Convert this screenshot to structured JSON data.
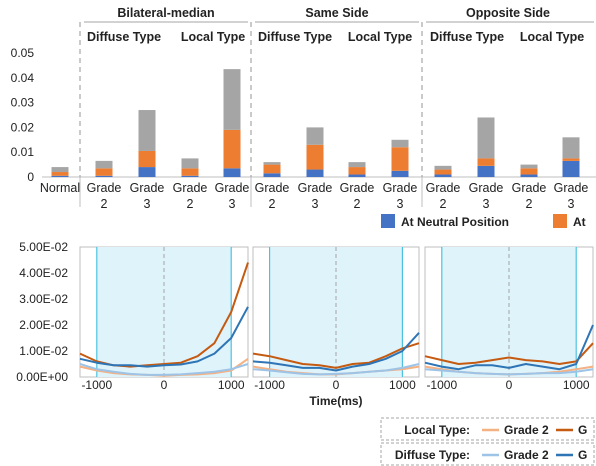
{
  "colors": {
    "neutral": "#4472c4",
    "orange": "#ed7d31",
    "gray": "#a5a5a5",
    "local_g2": "#f4b183",
    "local_g3": "#c55a11",
    "diffuse_g2": "#9dc3e6",
    "diffuse_g3": "#2e75b6",
    "shade": "#dff3fb",
    "shade_edge": "#4bc3e0"
  },
  "chart_data": [
    {
      "type": "bar",
      "stacked": true,
      "group_headers": [
        "Bilateral-median",
        "Same Side",
        "Opposite Side"
      ],
      "subgroup_headers": [
        "Diffuse Type",
        "Local Type",
        "Diffuse Type",
        "Local Type",
        "Diffuse Type",
        "Local Type"
      ],
      "categories": [
        [
          "Normal"
        ],
        [
          "Grade",
          "2"
        ],
        [
          "Grade",
          "3"
        ],
        [
          "Grade",
          "2"
        ],
        [
          "Grade",
          "3"
        ],
        [
          "Grade",
          "2"
        ],
        [
          "Grade",
          "3"
        ],
        [
          "Grade",
          "2"
        ],
        [
          "Grade",
          "3"
        ],
        [
          "Grade",
          "2"
        ],
        [
          "Grade",
          "3"
        ],
        [
          "Grade",
          "2"
        ],
        [
          "Grade",
          "3"
        ]
      ],
      "series": [
        {
          "name": "At Neutral Position",
          "color_key": "neutral",
          "values": [
            0.0005,
            0.0005,
            0.004,
            0.0005,
            0.0035,
            0.0015,
            0.003,
            0.001,
            0.0025,
            0.001,
            0.0045,
            0.001,
            0.0065
          ]
        },
        {
          "name": "At",
          "color_key": "orange",
          "values": [
            0.0015,
            0.003,
            0.0065,
            0.003,
            0.0155,
            0.0035,
            0.01,
            0.003,
            0.0095,
            0.002,
            0.003,
            0.0025,
            0.001
          ]
        },
        {
          "name": "",
          "color_key": "gray",
          "values": [
            0.002,
            0.003,
            0.0165,
            0.004,
            0.0245,
            0.001,
            0.007,
            0.002,
            0.003,
            0.0015,
            0.0165,
            0.0015,
            0.0085
          ]
        }
      ],
      "ylim": [
        0,
        0.05
      ],
      "yticks": [
        "0",
        "0.01",
        "0.02",
        "0.03",
        "0.04",
        "0.05"
      ],
      "ytick_values": [
        0,
        0.01,
        0.02,
        0.03,
        0.04,
        0.05
      ],
      "legend": [
        "At Neutral Position",
        "At"
      ]
    },
    {
      "type": "line",
      "xlabel": "Time(ms)",
      "xlim": [
        -1250,
        1250
      ],
      "xticks": [
        "-1000",
        "0",
        "1000"
      ],
      "xtick_values": [
        -1000,
        0,
        1000
      ],
      "ylim": [
        0,
        0.05
      ],
      "yticks": [
        "0.00E+00",
        "1.00E-02",
        "2.00E-02",
        "3.00E-02",
        "4.00E-02",
        "5.00E-02"
      ],
      "ytick_values": [
        0,
        0.01,
        0.02,
        0.03,
        0.04,
        0.05
      ],
      "shaded_range": [
        -1000,
        1000
      ],
      "x": [
        -1250,
        -1000,
        -750,
        -500,
        -250,
        0,
        250,
        500,
        750,
        1000,
        1250
      ],
      "panels": [
        {
          "series": [
            {
              "name": "Local Type: Grade 2",
              "color_key": "local_g2",
              "values": [
                0.004,
                0.0025,
                0.0015,
                0.001,
                0.0008,
                0.0005,
                0.0008,
                0.001,
                0.0015,
                0.0025,
                0.007
              ]
            },
            {
              "name": "Local Type: Grade 3",
              "color_key": "local_g3",
              "values": [
                0.009,
                0.006,
                0.0045,
                0.004,
                0.0045,
                0.005,
                0.0055,
                0.008,
                0.013,
                0.025,
                0.044
              ]
            },
            {
              "name": "Diffuse Type: Grade 2",
              "color_key": "diffuse_g2",
              "values": [
                0.005,
                0.003,
                0.002,
                0.0012,
                0.0008,
                0.0008,
                0.001,
                0.0015,
                0.002,
                0.003,
                0.005
              ]
            },
            {
              "name": "Diffuse Type: Grade 3",
              "color_key": "diffuse_g3",
              "values": [
                0.007,
                0.0055,
                0.0045,
                0.0045,
                0.004,
                0.0045,
                0.0048,
                0.006,
                0.009,
                0.015,
                0.027
              ]
            }
          ]
        },
        {
          "series": [
            {
              "name": "Local Type: Grade 2",
              "color_key": "local_g2",
              "values": [
                0.004,
                0.003,
                0.002,
                0.0015,
                0.001,
                0.001,
                0.0015,
                0.002,
                0.0025,
                0.003,
                0.004
              ]
            },
            {
              "name": "Local Type: Grade 3",
              "color_key": "local_g3",
              "values": [
                0.009,
                0.008,
                0.0065,
                0.005,
                0.0045,
                0.0035,
                0.005,
                0.0055,
                0.008,
                0.011,
                0.013
              ]
            },
            {
              "name": "Diffuse Type: Grade 2",
              "color_key": "diffuse_g2",
              "values": [
                0.003,
                0.0025,
                0.0018,
                0.0012,
                0.001,
                0.0012,
                0.0015,
                0.002,
                0.0025,
                0.0035,
                0.005
              ]
            },
            {
              "name": "Diffuse Type: Grade 3",
              "color_key": "diffuse_g3",
              "values": [
                0.006,
                0.0055,
                0.0045,
                0.0035,
                0.0035,
                0.0025,
                0.004,
                0.005,
                0.007,
                0.01,
                0.017
              ]
            }
          ]
        },
        {
          "series": [
            {
              "name": "Local Type: Grade 2",
              "color_key": "local_g2",
              "values": [
                0.004,
                0.003,
                0.002,
                0.0015,
                0.0012,
                0.001,
                0.0012,
                0.0015,
                0.002,
                0.003,
                0.004
              ]
            },
            {
              "name": "Local Type: Grade 3",
              "color_key": "local_g3",
              "values": [
                0.008,
                0.0065,
                0.005,
                0.0055,
                0.0065,
                0.0075,
                0.0065,
                0.006,
                0.005,
                0.006,
                0.013
              ]
            },
            {
              "name": "Diffuse Type: Grade 2",
              "color_key": "diffuse_g2",
              "values": [
                0.003,
                0.0025,
                0.002,
                0.0015,
                0.0012,
                0.001,
                0.0012,
                0.0015,
                0.0015,
                0.002,
                0.003
              ]
            },
            {
              "name": "Diffuse Type: Grade 3",
              "color_key": "diffuse_g3",
              "values": [
                0.0055,
                0.004,
                0.003,
                0.0045,
                0.0045,
                0.0035,
                0.005,
                0.004,
                0.003,
                0.005,
                0.02
              ]
            }
          ]
        }
      ]
    }
  ],
  "line_legend": {
    "rows": [
      {
        "label": "Local Type:",
        "items": [
          {
            "text": "Grade 2",
            "color_key": "local_g2"
          },
          {
            "text": "G",
            "color_key": "local_g3"
          }
        ]
      },
      {
        "label": "Diffuse Type:",
        "items": [
          {
            "text": "Grade 2",
            "color_key": "diffuse_g2"
          },
          {
            "text": "G",
            "color_key": "diffuse_g3"
          }
        ]
      }
    ]
  }
}
